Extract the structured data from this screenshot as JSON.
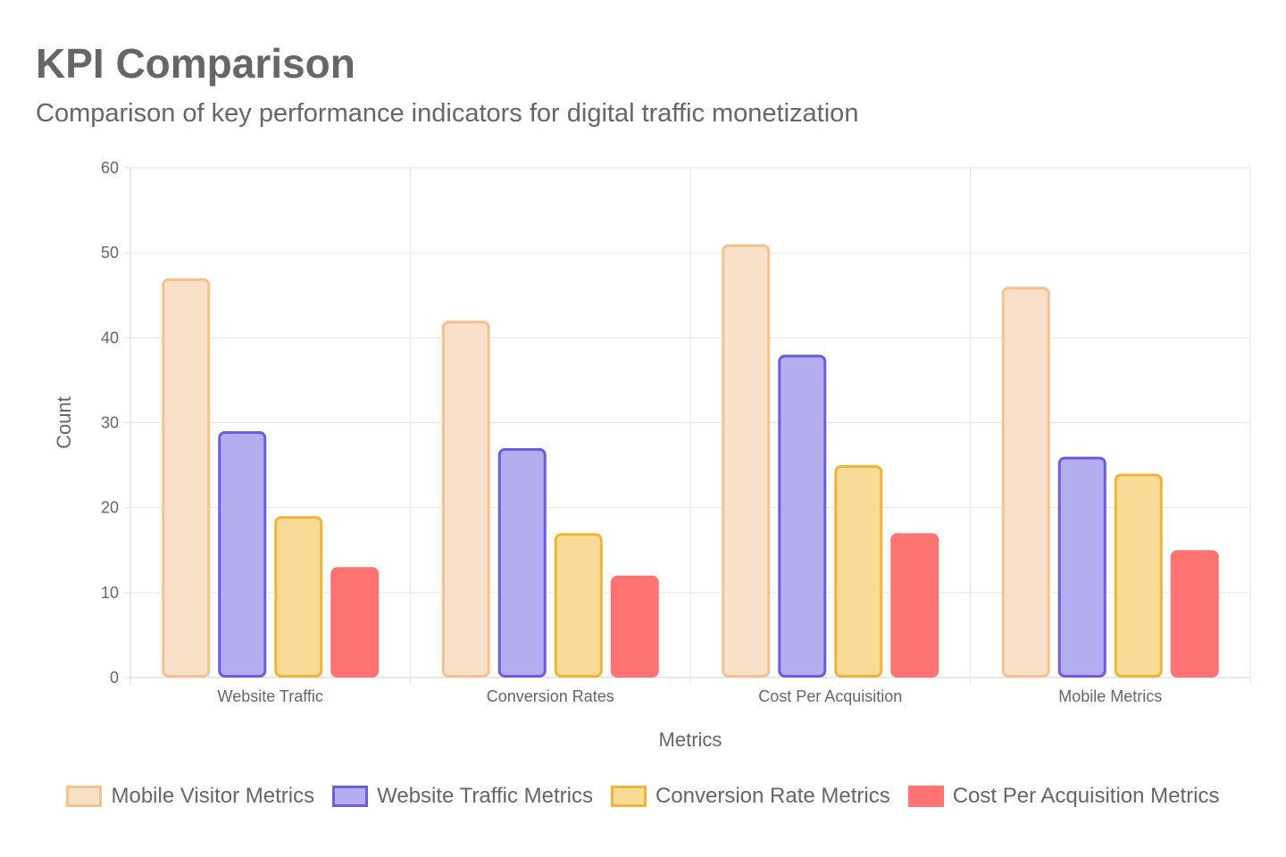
{
  "chart_data": {
    "type": "bar",
    "title": "KPI Comparison",
    "subtitle": "Comparison of key performance indicators for digital traffic monetization",
    "xlabel": "Metrics",
    "ylabel": "Count",
    "ylim": [
      0,
      60
    ],
    "ytick_step": 10,
    "yticks": [
      "0",
      "10",
      "20",
      "30",
      "40",
      "50",
      "60"
    ],
    "grid": true,
    "legend_position": "bottom",
    "categories": [
      "Website Traffic",
      "Conversion Rates",
      "Cost Per Acquisition",
      "Mobile Metrics"
    ],
    "series": [
      {
        "name": "Mobile Visitor Metrics",
        "values": [
          47,
          42,
          51,
          46
        ],
        "fill": "#F9E0C8",
        "stroke": "#F6C08F"
      },
      {
        "name": "Website Traffic Metrics",
        "values": [
          29,
          27,
          38,
          26
        ],
        "fill": "#B3AEF0",
        "stroke": "#6F5BE0"
      },
      {
        "name": "Conversion Rate Metrics",
        "values": [
          19,
          17,
          25,
          24
        ],
        "fill": "#F9DB97",
        "stroke": "#F0B43A"
      },
      {
        "name": "Cost Per Acquisition Metrics",
        "values": [
          13,
          12,
          17,
          15
        ],
        "fill": "#FF7473",
        "stroke": "#FF7473"
      }
    ]
  }
}
